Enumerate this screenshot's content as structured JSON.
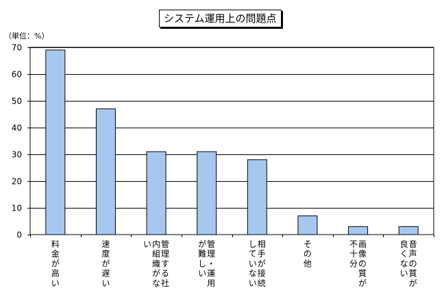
{
  "chart_data": {
    "type": "bar",
    "title": "システム運用上の問題点",
    "ylabel": "（単位：%）",
    "xlabel": "",
    "ylim": [
      0,
      70
    ],
    "yticks": [
      0,
      10,
      20,
      30,
      40,
      50,
      60,
      70
    ],
    "grid": true,
    "categories": [
      [
        "料",
        "金",
        "が",
        "高",
        "い"
      ],
      [
        "速",
        "度",
        "が",
        "遅",
        "い"
      ],
      [
        "管",
        "理",
        "す",
        "る",
        "社",
        "内",
        "組",
        "織",
        "が",
        "な",
        "い"
      ],
      [
        "管",
        "理",
        "・",
        "運",
        "用",
        "が",
        "難",
        "し",
        "い"
      ],
      [
        "相",
        "手",
        "が",
        "接",
        "続",
        "し",
        "て",
        "い",
        "な",
        "い"
      ],
      [
        "そ",
        "の",
        "他"
      ],
      [
        "画",
        "像",
        "の",
        "質",
        "が",
        "不",
        "十",
        "分"
      ],
      [
        "音",
        "声",
        "の",
        "質",
        "が",
        "良",
        "く",
        "な",
        "い"
      ]
    ],
    "values": [
      69,
      47,
      31,
      31,
      28,
      7,
      3,
      3
    ],
    "bar_color": "#a6c8ef"
  }
}
